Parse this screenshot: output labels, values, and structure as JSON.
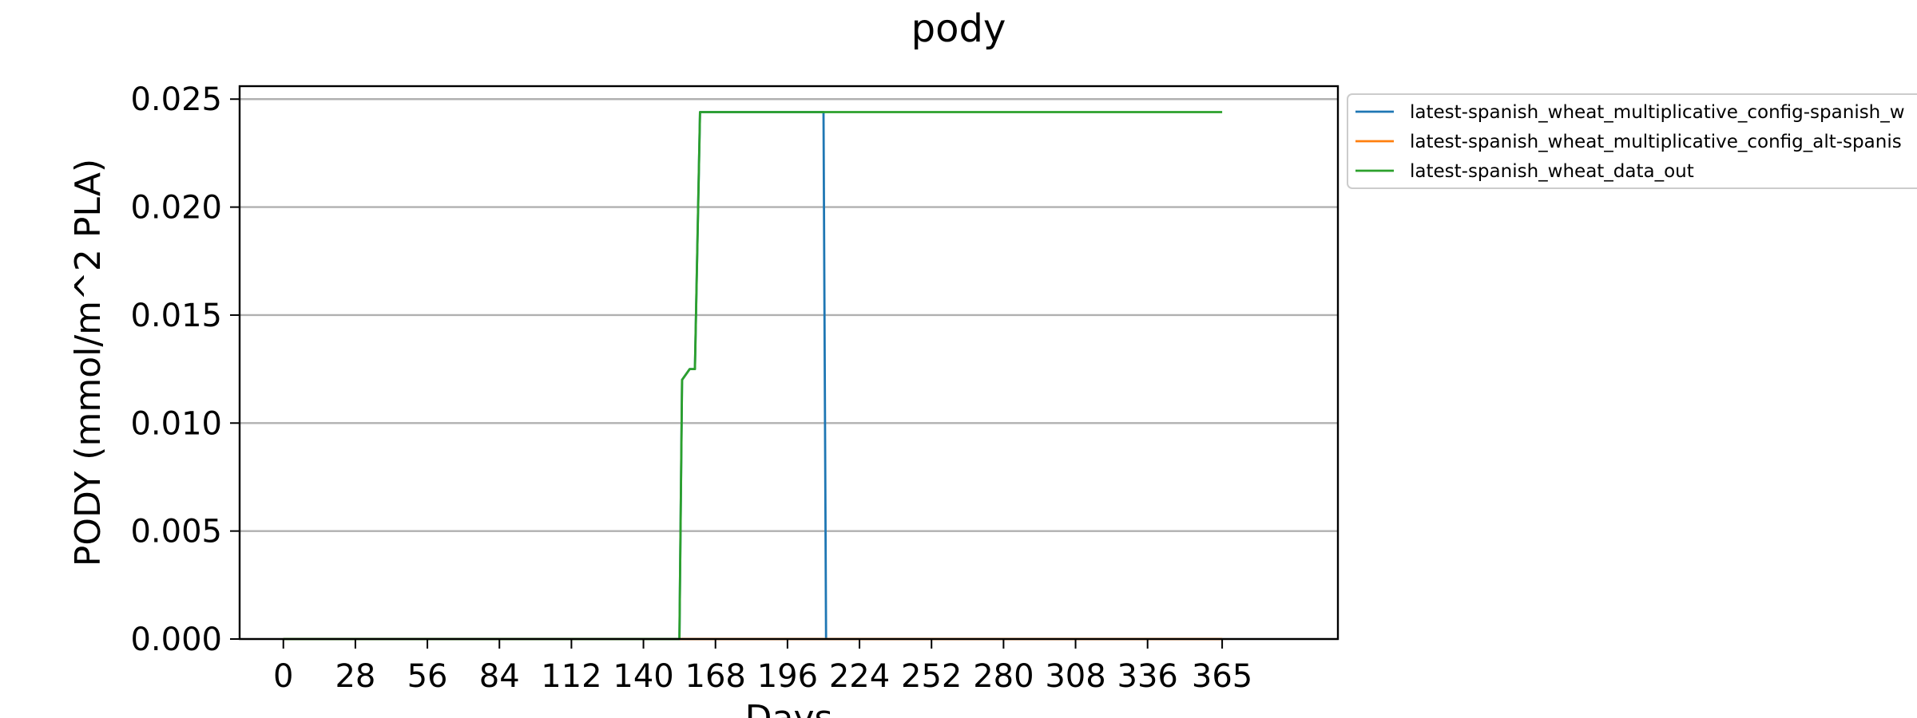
{
  "chart_data": {
    "type": "line",
    "title": "pody",
    "xlabel": "Days",
    "ylabel": "PODY (mmol/m^2 PLA)",
    "xlim": [
      -17,
      410
    ],
    "ylim": [
      0.0,
      0.0256
    ],
    "xticks": [
      0,
      28,
      56,
      84,
      112,
      140,
      168,
      196,
      224,
      252,
      280,
      308,
      336,
      365
    ],
    "yticks": [
      0.0,
      0.005,
      0.01,
      0.015,
      0.02,
      0.025
    ],
    "ytick_labels": [
      "0.000",
      "0.005",
      "0.010",
      "0.015",
      "0.020",
      "0.025"
    ],
    "grid": "y",
    "legend_position": "upper right, outside plot",
    "series": [
      {
        "name": "latest-spanish_wheat_multiplicative_config-spanish_w",
        "color": "#1f77b4",
        "x": [
          0,
          154,
          155,
          158,
          159,
          160,
          162,
          164,
          165,
          210,
          211
        ],
        "y": [
          0.0,
          0.0,
          0.012,
          0.0125,
          0.0125,
          0.0125,
          0.0244,
          0.0244,
          0.0244,
          0.0244,
          0.0
        ]
      },
      {
        "name": "latest-spanish_wheat_multiplicative_config_alt-spanis",
        "color": "#ff7f0e",
        "x": [
          0,
          365
        ],
        "y": [
          0.0,
          0.0
        ]
      },
      {
        "name": "latest-spanish_wheat_data_out",
        "color": "#2ca02c",
        "x": [
          0,
          154,
          155,
          158,
          159,
          160,
          162,
          164,
          165,
          365
        ],
        "y": [
          0.0,
          0.0,
          0.012,
          0.0125,
          0.0125,
          0.0125,
          0.0244,
          0.0244,
          0.0244,
          0.0244
        ]
      }
    ]
  }
}
